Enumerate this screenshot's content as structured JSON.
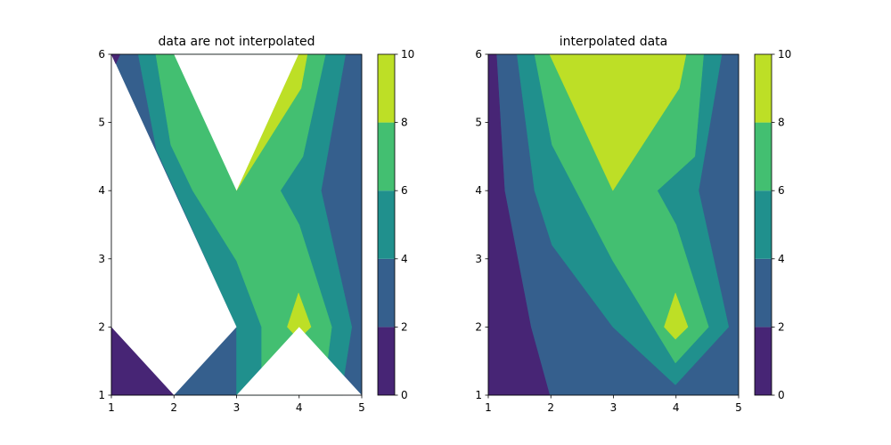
{
  "chart_data": [
    {
      "type": "contourf",
      "title": "data are not interpolated",
      "xlim": [
        1,
        5
      ],
      "ylim": [
        1,
        6
      ],
      "xticks": [
        1,
        2,
        3,
        4,
        5
      ],
      "yticks": [
        1,
        2,
        3,
        4,
        5,
        6
      ],
      "levels": [
        0,
        2,
        4,
        6,
        8,
        10
      ],
      "colors": [
        "#472575",
        "#355f8d",
        "#20908d",
        "#43bf71",
        "#bddf26"
      ],
      "mask_color": "#ffffff",
      "regions": [
        {
          "level": 2,
          "polygon": [
            [
              1,
              1
            ],
            [
              5,
              1
            ],
            [
              5,
              6
            ],
            [
              1,
              6
            ]
          ]
        },
        {
          "level": 4,
          "polygon": [
            [
              1.43,
              6
            ],
            [
              4.74,
              6
            ],
            [
              4.35,
              4
            ],
            [
              4.84,
              2
            ],
            [
              4.72,
              1.3
            ],
            [
              4.7,
              1
            ],
            [
              3,
              1
            ],
            [
              3,
              2
            ],
            [
              1.72,
              4.6
            ]
          ]
        },
        {
          "level": 6,
          "polygon": [
            [
              1.71,
              6
            ],
            [
              4.42,
              6
            ],
            [
              4.06,
              4.5
            ],
            [
              3.7,
              4
            ],
            [
              4.0,
              3.5
            ],
            [
              4.52,
              2
            ],
            [
              4.45,
              1.5
            ],
            [
              3.4,
              1.4
            ],
            [
              3.4,
              2
            ],
            [
              3,
              2.97
            ],
            [
              2.3,
              4
            ],
            [
              1.95,
              4.67
            ]
          ]
        },
        {
          "level": 8,
          "polygon": [
            [
              3,
              4
            ],
            [
              3.99,
              6
            ],
            [
              4.13,
              6
            ],
            [
              4.03,
              5.5
            ]
          ]
        },
        {
          "level": 8,
          "polygon": [
            [
              3.99,
              2.5
            ],
            [
              4.19,
              2
            ],
            [
              3.99,
              1.82
            ],
            [
              3.81,
              2
            ]
          ]
        },
        {
          "level": 0,
          "polygon": [
            [
              1,
              2
            ],
            [
              1,
              1
            ],
            [
              2,
              1
            ]
          ]
        }
      ],
      "masked": [
        [
          [
            1,
            6
          ],
          [
            3,
            2
          ],
          [
            2,
            1
          ],
          [
            1,
            2
          ]
        ],
        [
          [
            2,
            6
          ],
          [
            3.99,
            6
          ],
          [
            3,
            4
          ]
        ],
        [
          [
            3,
            1
          ],
          [
            4,
            2
          ],
          [
            5,
            1
          ]
        ]
      ],
      "regions_after_mask": [
        {
          "level": 0,
          "polygon": [
            [
              1,
              6
            ],
            [
              1.14,
              6
            ],
            [
              1.07,
              5.86
            ]
          ]
        }
      ]
    },
    {
      "type": "contourf",
      "title": "interpolated data",
      "xlim": [
        1,
        5
      ],
      "ylim": [
        1,
        6
      ],
      "xticks": [
        1,
        2,
        3,
        4,
        5
      ],
      "yticks": [
        1,
        2,
        3,
        4,
        5,
        6
      ],
      "levels": [
        0,
        2,
        4,
        6,
        8,
        10
      ],
      "colors": [
        "#472575",
        "#355f8d",
        "#20908d",
        "#43bf71",
        "#bddf26"
      ],
      "regions": [
        {
          "level": 2,
          "polygon": [
            [
              1,
              1
            ],
            [
              5,
              1
            ],
            [
              5,
              6
            ],
            [
              1,
              6
            ]
          ]
        },
        {
          "level": 4,
          "polygon": [
            [
              1.46,
              6
            ],
            [
              4.73,
              6
            ],
            [
              4.36,
              4
            ],
            [
              4.84,
              2
            ],
            [
              3.99,
              1.15
            ],
            [
              2.99,
              2
            ],
            [
              2.02,
              3.2
            ],
            [
              1.74,
              4
            ]
          ]
        },
        {
          "level": 6,
          "polygon": [
            [
              1.74,
              6
            ],
            [
              4.44,
              6
            ],
            [
              4.3,
              4.5
            ],
            [
              3.7,
              4
            ],
            [
              4.0,
              3.5
            ],
            [
              4.52,
              2
            ],
            [
              3.99,
              1.47
            ],
            [
              2.99,
              2.97
            ],
            [
              2.02,
              4.67
            ]
          ]
        },
        {
          "level": 8,
          "polygon": [
            [
              1.98,
              6
            ],
            [
              4.16,
              6
            ],
            [
              4.05,
              5.5
            ],
            [
              2.99,
              4
            ]
          ]
        },
        {
          "level": 8,
          "polygon": [
            [
              3.99,
              2.5
            ],
            [
              4.19,
              2
            ],
            [
              3.99,
              1.82
            ],
            [
              3.81,
              2
            ]
          ]
        },
        {
          "level": 0,
          "polygon": [
            [
              1,
              6
            ],
            [
              1.13,
              6
            ],
            [
              1.26,
              4
            ],
            [
              1.68,
              2
            ],
            [
              1.98,
              1
            ],
            [
              1,
              1
            ]
          ]
        }
      ]
    }
  ]
}
